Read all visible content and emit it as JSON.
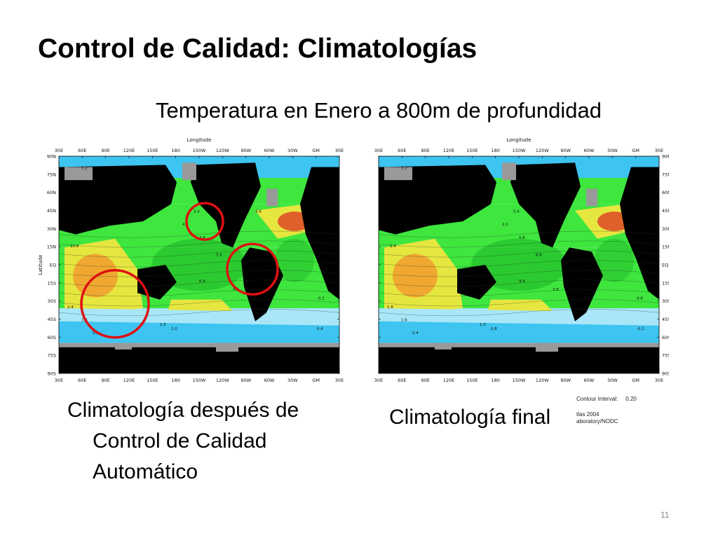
{
  "slide": {
    "title": "Control de Calidad: Climatologías",
    "subtitle": "Temperatura en Enero a 800m de profundidad",
    "page_number": "11"
  },
  "maps": {
    "longitude_title": "Longitude",
    "latitude_title": "Latitude",
    "longitude_ticks": [
      "30E",
      "60E",
      "90E",
      "120E",
      "150E",
      "180",
      "150W",
      "120W",
      "90W",
      "60W",
      "30W",
      "GM",
      "30E"
    ],
    "latitude_ticks": [
      "90N",
      "75N",
      "60N",
      "45N",
      "30N",
      "15N",
      "EQ",
      "15S",
      "30S",
      "45S",
      "60S",
      "75S",
      "90S"
    ],
    "colors": {
      "land": "#000000",
      "no_data": "#999999",
      "cold": "#3ec4f0",
      "cool": "#a8e6f8",
      "mid": "#3ee63e",
      "mid_dark": "#22b82a",
      "warm": "#e6e640",
      "hot": "#f0a830",
      "hotter": "#e0602a",
      "highlight_circle": "#dd1111",
      "pink": "#f0387a"
    },
    "left_panel": {
      "caption_line1": "Climatología después de",
      "caption_line2": "Control de Calidad",
      "caption_line3": "Automático",
      "contour_labels": [
        "0.2",
        "0.0",
        "-0.0",
        "3.4",
        "4.6",
        "5.6",
        "6.4",
        "7.0",
        "10.8",
        "2.4",
        "1.8",
        "1.6",
        "1.0",
        "0.8",
        "0.4",
        "-0.2",
        "5.2",
        "4.4",
        "3.6"
      ]
    },
    "right_panel": {
      "caption": "Climatología final",
      "contour_labels": [
        "3.2",
        "4.4",
        "5.0",
        "5.4",
        "5.6",
        "6.6",
        "9.4",
        "10.0",
        "2.4",
        "1.8",
        "1.6",
        "1.0",
        "0.8",
        "0.4",
        "-0.2",
        "4.8",
        "3.8",
        "2.2"
      ],
      "contour_interval_label": "Contour Interval:",
      "contour_interval_value": "0.20",
      "atlas_label": "tlas 2004",
      "lab_label": "aboratory/NODC"
    }
  }
}
